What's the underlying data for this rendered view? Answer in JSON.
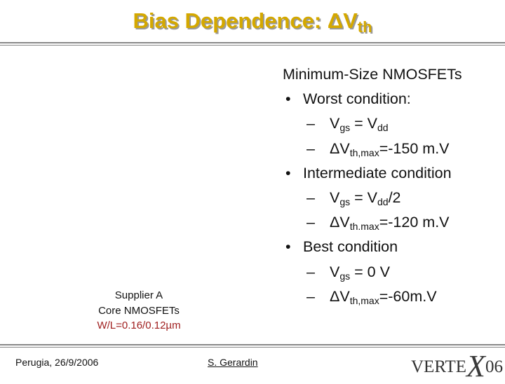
{
  "title": {
    "main": "Bias Dependence: ΔV",
    "sub": "th"
  },
  "items": [
    {
      "level": 0,
      "parts": [
        {
          "t": "Minimum-Size NMOSFETs"
        }
      ]
    },
    {
      "level": 1,
      "marker": "•",
      "parts": [
        {
          "t": "Worst condition:"
        }
      ]
    },
    {
      "level": 2,
      "marker": "–",
      "parts": [
        {
          "t": "V"
        },
        {
          "t": "gs",
          "sub": true
        },
        {
          "t": " = V"
        },
        {
          "t": "dd",
          "sub": true
        }
      ]
    },
    {
      "level": 2,
      "marker": "–",
      "parts": [
        {
          "t": "ΔV"
        },
        {
          "t": "th,max",
          "sub": true
        },
        {
          "t": "=-150 m.V"
        }
      ]
    },
    {
      "level": 1,
      "marker": "•",
      "parts": [
        {
          "t": "Intermediate condition"
        }
      ]
    },
    {
      "level": 2,
      "marker": "–",
      "parts": [
        {
          "t": "V"
        },
        {
          "t": "gs",
          "sub": true
        },
        {
          "t": " = V"
        },
        {
          "t": "dd",
          "sub": true
        },
        {
          "t": "/2"
        }
      ]
    },
    {
      "level": 2,
      "marker": "–",
      "parts": [
        {
          "t": "ΔV"
        },
        {
          "t": "th.max",
          "sub": true
        },
        {
          "t": "=-120 m.V"
        }
      ]
    },
    {
      "level": 1,
      "marker": "•",
      "parts": [
        {
          "t": "Best condition"
        }
      ]
    },
    {
      "level": 2,
      "marker": "–",
      "parts": [
        {
          "t": "V"
        },
        {
          "t": "gs",
          "sub": true
        },
        {
          "t": " = 0 V"
        }
      ]
    },
    {
      "level": 2,
      "marker": "–",
      "parts": [
        {
          "t": "ΔV"
        },
        {
          "t": "th,max",
          "sub": true
        },
        {
          "t": "=-60m.V"
        }
      ]
    }
  ],
  "caption": [
    "Supplier A",
    "Core NMOSFETs",
    "W/L=0.16/0.12µm"
  ],
  "footer": {
    "left": "Perugia, 26/9/2006",
    "author": "S. Gerardin",
    "logo": {
      "a": "VERTE",
      "b": "X",
      "c": "06"
    }
  }
}
